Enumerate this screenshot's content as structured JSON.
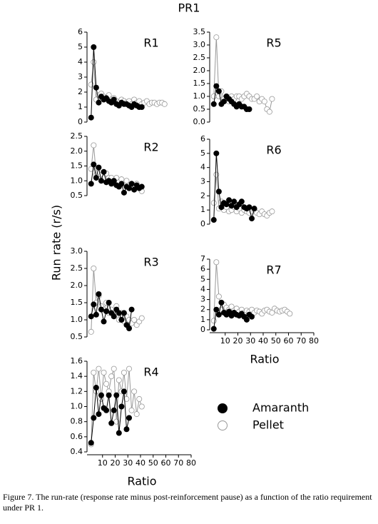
{
  "title": "PR1",
  "ylabel": "Run rate (r/s)",
  "legend": [
    {
      "name": "Amaranth",
      "color": "#000000",
      "fill": "#000000"
    },
    {
      "name": "Pellet",
      "color": "#999999",
      "fill": "#ffffff"
    }
  ],
  "caption": "Figure 7. The run-rate (response rate minus post-reinforcement pause) as a function of the ratio requirement under PR 1.",
  "chart_data": [
    {
      "type": "line",
      "label": "R1",
      "xlim": [
        0,
        80
      ],
      "ylim": [
        0,
        6
      ],
      "yticks": [
        0,
        1,
        2,
        3,
        4,
        5,
        6
      ],
      "series": [
        {
          "color": "#999999",
          "fill": "#ffffff",
          "x": [
            1,
            3,
            5,
            7,
            9,
            11,
            13,
            15,
            17,
            19,
            21,
            23,
            25,
            27,
            29,
            31,
            33,
            35,
            37,
            39,
            41,
            43,
            45,
            47,
            49,
            51,
            53,
            55,
            57,
            59
          ],
          "values": [
            2.5,
            4.0,
            1.5,
            1.8,
            1.9,
            1.7,
            1.6,
            1.8,
            1.5,
            1.6,
            1.4,
            1.3,
            1.5,
            1.4,
            1.3,
            1.4,
            1.2,
            1.5,
            1.3,
            1.4,
            1.2,
            1.3,
            1.4,
            1.2,
            1.3,
            1.3,
            1.2,
            1.3,
            1.3,
            1.2
          ]
        },
        {
          "color": "#000000",
          "fill": "#000000",
          "x": [
            1,
            3,
            5,
            7,
            9,
            11,
            13,
            15,
            17,
            19,
            21,
            23,
            25,
            27,
            29,
            31,
            33,
            35,
            37,
            39,
            41
          ],
          "values": [
            0.3,
            5.0,
            2.3,
            1.3,
            1.7,
            1.5,
            1.6,
            1.4,
            1.3,
            1.5,
            1.2,
            1.1,
            1.3,
            1.2,
            1.2,
            1.1,
            1.0,
            1.2,
            1.1,
            1.0,
            1.0
          ]
        }
      ]
    },
    {
      "type": "line",
      "label": "R5",
      "xlim": [
        0,
        80
      ],
      "ylim": [
        0,
        3.5
      ],
      "yticks": [
        {
          "value": 0,
          "label": "0.0"
        },
        0.5,
        {
          "value": 1,
          "label": "1.0"
        },
        1.5,
        {
          "value": 2,
          "label": "2.0"
        },
        2.5,
        {
          "value": 3,
          "label": "3.0"
        },
        3.5
      ],
      "series": [
        {
          "color": "#999999",
          "fill": "#ffffff",
          "x": [
            1,
            3,
            5,
            7,
            9,
            11,
            13,
            15,
            17,
            19,
            21,
            23,
            25,
            27,
            29,
            31,
            33,
            35,
            37,
            39,
            41,
            43,
            45,
            47
          ],
          "values": [
            1.0,
            3.3,
            1.0,
            1.2,
            0.9,
            1.0,
            0.8,
            1.0,
            0.9,
            1.0,
            1.0,
            0.9,
            1.0,
            1.1,
            1.0,
            0.9,
            0.9,
            1.0,
            0.8,
            0.9,
            0.8,
            0.5,
            0.4,
            0.9
          ]
        },
        {
          "color": "#000000",
          "fill": "#000000",
          "x": [
            1,
            3,
            5,
            7,
            9,
            11,
            13,
            15,
            17,
            19,
            21,
            23,
            25,
            27,
            29
          ],
          "values": [
            0.7,
            1.4,
            1.2,
            0.7,
            0.8,
            1.0,
            0.9,
            0.8,
            0.7,
            0.6,
            0.7,
            0.6,
            0.6,
            0.5,
            0.5
          ]
        }
      ]
    },
    {
      "type": "line",
      "label": "R2",
      "xlim": [
        0,
        80
      ],
      "ylim": [
        0.5,
        2.5
      ],
      "yticks": [
        0.5,
        {
          "value": 1,
          "label": "1.0"
        },
        1.5,
        {
          "value": 2,
          "label": "2.0"
        },
        2.5
      ],
      "series": [
        {
          "color": "#999999",
          "fill": "#ffffff",
          "x": [
            1,
            3,
            5,
            7,
            9,
            11,
            13,
            15,
            17,
            19,
            21,
            23,
            25,
            27,
            29,
            31,
            33,
            35,
            37,
            39,
            41
          ],
          "values": [
            1.4,
            2.2,
            1.2,
            1.3,
            1.2,
            1.1,
            1.25,
            1.1,
            1.1,
            1.0,
            1.1,
            0.95,
            1.05,
            0.9,
            1.0,
            0.85,
            0.9,
            0.8,
            0.9,
            0.75,
            0.65
          ]
        },
        {
          "color": "#000000",
          "fill": "#000000",
          "x": [
            1,
            3,
            5,
            7,
            9,
            11,
            13,
            15,
            17,
            19,
            21,
            23,
            25,
            27,
            29,
            31,
            33,
            35,
            37,
            39,
            41
          ],
          "values": [
            0.9,
            1.55,
            1.1,
            1.45,
            1.0,
            1.3,
            0.95,
            1.0,
            0.9,
            1.0,
            0.85,
            0.8,
            0.9,
            0.6,
            0.8,
            0.75,
            0.9,
            0.7,
            0.85,
            0.75,
            0.8
          ]
        }
      ]
    },
    {
      "type": "line",
      "label": "R6",
      "xlim": [
        0,
        80
      ],
      "ylim": [
        0,
        6
      ],
      "yticks": [
        0,
        1,
        2,
        3,
        4,
        5,
        6
      ],
      "series": [
        {
          "color": "#999999",
          "fill": "#ffffff",
          "x": [
            1,
            3,
            5,
            7,
            9,
            11,
            13,
            15,
            17,
            19,
            21,
            23,
            25,
            27,
            29,
            31,
            33,
            35,
            37,
            39,
            41,
            43,
            45,
            47
          ],
          "values": [
            1.5,
            3.5,
            1.1,
            1.6,
            1.0,
            1.2,
            0.9,
            1.0,
            1.2,
            0.9,
            1.1,
            0.8,
            1.0,
            0.9,
            0.8,
            0.9,
            1.0,
            0.8,
            0.7,
            0.9,
            0.7,
            0.6,
            0.8,
            0.9
          ]
        },
        {
          "color": "#000000",
          "fill": "#000000",
          "x": [
            1,
            3,
            5,
            7,
            9,
            11,
            13,
            15,
            17,
            19,
            21,
            23,
            25,
            27,
            29,
            31,
            33
          ],
          "values": [
            0.3,
            5.0,
            2.3,
            1.2,
            1.5,
            1.4,
            1.7,
            1.3,
            1.6,
            1.2,
            1.4,
            1.6,
            1.2,
            1.1,
            1.2,
            0.4,
            1.1
          ]
        }
      ]
    },
    {
      "type": "line",
      "label": "R3",
      "xlim": [
        0,
        80
      ],
      "ylim": [
        0.5,
        3
      ],
      "yticks": [
        0.5,
        {
          "value": 1,
          "label": "1.0"
        },
        1.5,
        {
          "value": 2,
          "label": "2.0"
        },
        2.5,
        {
          "value": 3,
          "label": "3.0"
        }
      ],
      "series": [
        {
          "color": "#999999",
          "fill": "#ffffff",
          "x": [
            1,
            3,
            5,
            7,
            9,
            11,
            13,
            15,
            17,
            19,
            21,
            23,
            25,
            27,
            29,
            31,
            33,
            35,
            37,
            39,
            41
          ],
          "values": [
            0.65,
            2.5,
            1.5,
            1.7,
            1.4,
            1.3,
            1.5,
            1.2,
            1.3,
            1.1,
            1.4,
            1.0,
            1.2,
            0.95,
            1.1,
            1.0,
            0.9,
            1.0,
            0.85,
            0.95,
            1.05
          ]
        },
        {
          "color": "#000000",
          "fill": "#000000",
          "x": [
            1,
            3,
            5,
            7,
            9,
            11,
            13,
            15,
            17,
            19,
            21,
            23,
            25,
            27,
            29,
            31,
            33
          ],
          "values": [
            1.1,
            1.45,
            1.15,
            1.75,
            1.3,
            0.95,
            1.25,
            1.5,
            1.2,
            1.1,
            1.3,
            1.2,
            1.0,
            1.2,
            0.85,
            0.75,
            1.3
          ]
        }
      ]
    },
    {
      "type": "line",
      "label": "R7",
      "xlim": [
        0,
        80
      ],
      "ylim": [
        0,
        7
      ],
      "yticks": [
        0,
        1,
        2,
        3,
        4,
        5,
        6,
        7
      ],
      "xticks": [
        10,
        20,
        30,
        40,
        50,
        60,
        70,
        80
      ],
      "xlabel": "Ratio",
      "series": [
        {
          "color": "#999999",
          "fill": "#ffffff",
          "x": [
            1,
            3,
            5,
            7,
            9,
            11,
            13,
            15,
            17,
            19,
            21,
            23,
            25,
            27,
            29,
            31,
            33,
            35,
            37,
            39,
            41,
            43,
            45,
            47,
            49,
            51,
            53,
            55,
            57,
            59,
            61
          ],
          "values": [
            0.9,
            6.7,
            3.3,
            2.0,
            2.5,
            2.2,
            2.0,
            2.3,
            1.9,
            2.1,
            1.8,
            2.0,
            1.7,
            1.9,
            1.8,
            2.0,
            1.7,
            1.9,
            1.8,
            1.6,
            1.9,
            2.0,
            1.8,
            1.7,
            2.1,
            1.9,
            1.8,
            1.9,
            2.0,
            1.8,
            1.6
          ]
        },
        {
          "color": "#000000",
          "fill": "#000000",
          "x": [
            1,
            3,
            5,
            7,
            9,
            11,
            13,
            15,
            17,
            19,
            21,
            23,
            25,
            27,
            29,
            31
          ],
          "values": [
            0.1,
            2.0,
            1.5,
            2.7,
            1.7,
            1.5,
            1.8,
            1.4,
            1.7,
            1.5,
            1.4,
            1.6,
            1.3,
            1.0,
            1.5,
            1.3
          ]
        }
      ]
    },
    {
      "type": "line",
      "label": "R4",
      "xlim": [
        0,
        80
      ],
      "ylim": [
        0.4,
        1.6
      ],
      "yticks": [
        0.4,
        0.6,
        0.8,
        {
          "value": 1,
          "label": "1.0"
        },
        1.2,
        1.4,
        1.6
      ],
      "xticks": [
        10,
        20,
        30,
        40,
        50,
        60,
        70,
        80
      ],
      "xlabel": "Ratio",
      "series": [
        {
          "color": "#999999",
          "fill": "#ffffff",
          "x": [
            1,
            3,
            5,
            7,
            9,
            11,
            13,
            15,
            17,
            19,
            21,
            23,
            25,
            27,
            29,
            31,
            33,
            35,
            37,
            39,
            41
          ],
          "values": [
            0.5,
            1.45,
            1.2,
            1.5,
            1.1,
            1.45,
            1.3,
            1.2,
            1.4,
            1.5,
            0.8,
            1.35,
            1.2,
            1.45,
            1.1,
            1.5,
            0.95,
            1.2,
            0.9,
            1.1,
            1.0
          ]
        },
        {
          "color": "#000000",
          "fill": "#000000",
          "x": [
            1,
            3,
            5,
            7,
            9,
            11,
            13,
            15,
            17,
            19,
            21,
            23,
            25,
            27,
            29,
            31
          ],
          "values": [
            0.52,
            0.85,
            1.25,
            0.9,
            1.15,
            0.98,
            0.95,
            1.15,
            0.78,
            0.95,
            1.15,
            0.65,
            1.0,
            1.2,
            0.7,
            0.85
          ]
        }
      ]
    }
  ]
}
